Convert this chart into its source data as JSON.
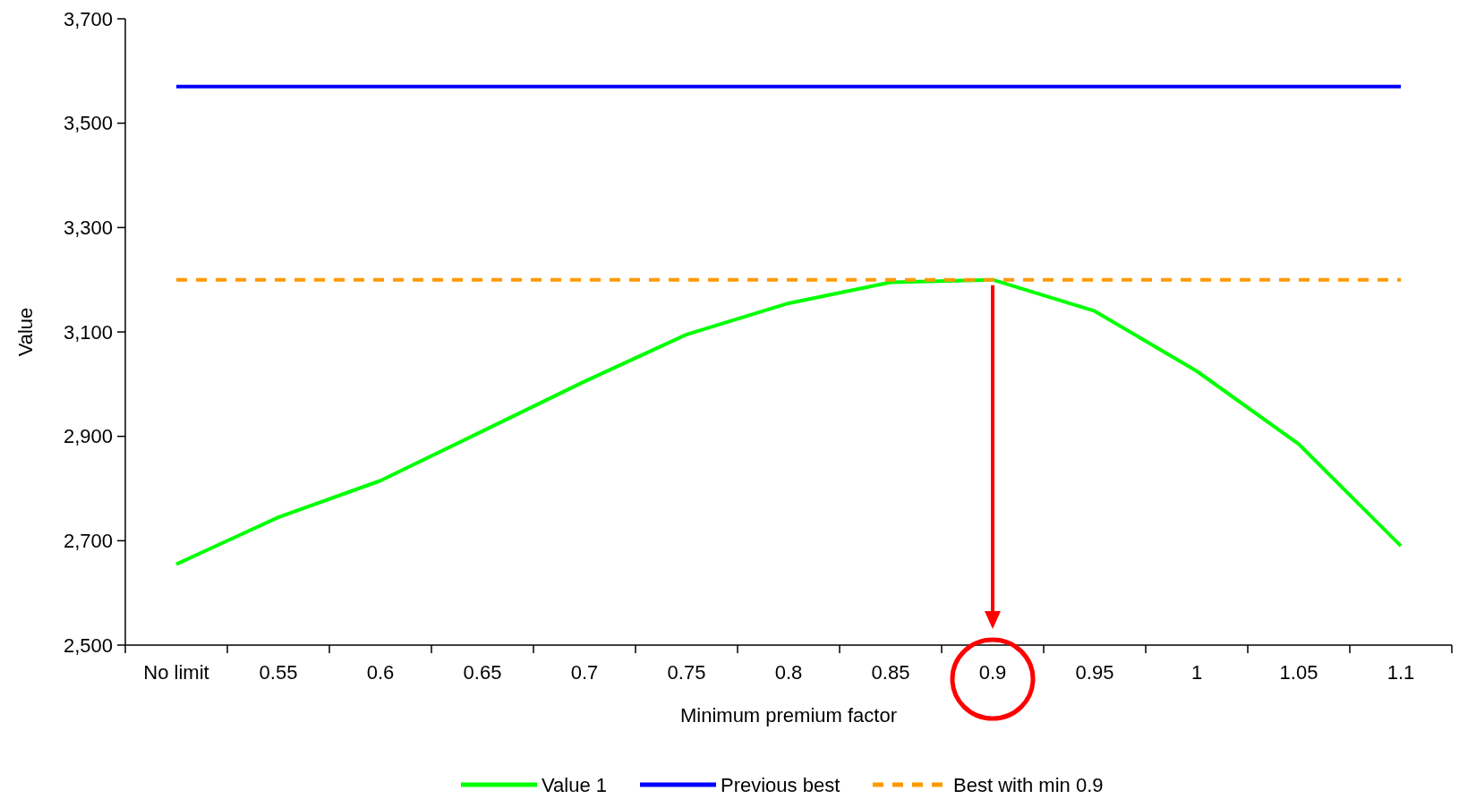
{
  "chart_data": {
    "type": "line",
    "xlabel": "Minimum premium factor",
    "ylabel": "Value",
    "categories": [
      "No limit",
      "0.55",
      "0.6",
      "0.65",
      "0.7",
      "0.75",
      "0.8",
      "0.85",
      "0.9",
      "0.95",
      "1",
      "1.05",
      "1.1"
    ],
    "series": [
      {
        "name": "Value 1",
        "color": "#00ff00",
        "values": [
          2655,
          2745,
          2815,
          2910,
          3005,
          3095,
          3155,
          3195,
          3200,
          3140,
          3025,
          2885,
          2690
        ]
      },
      {
        "name": "Previous best",
        "color": "#0000ff",
        "values": [
          3570,
          3570,
          3570,
          3570,
          3570,
          3570,
          3570,
          3570,
          3570,
          3570,
          3570,
          3570,
          3570
        ]
      },
      {
        "name": "Best with min 0.9",
        "color": "#ff9900",
        "line_style": "dashed",
        "values": [
          3200,
          3200,
          3200,
          3200,
          3200,
          3200,
          3200,
          3200,
          3200,
          3200,
          3200,
          3200,
          3200
        ]
      }
    ],
    "ylim": [
      2500,
      3700
    ],
    "yticks": [
      {
        "value": 2500,
        "label": "2,500"
      },
      {
        "value": 2700,
        "label": "2,700"
      },
      {
        "value": 2900,
        "label": "2,900"
      },
      {
        "value": 3100,
        "label": "3,100"
      },
      {
        "value": 3300,
        "label": "3,300"
      },
      {
        "value": 3500,
        "label": "3,500"
      },
      {
        "value": 3700,
        "label": "3,700"
      }
    ],
    "grid": false,
    "legend": "bottom",
    "marker": "none",
    "line_style": "solid"
  }
}
